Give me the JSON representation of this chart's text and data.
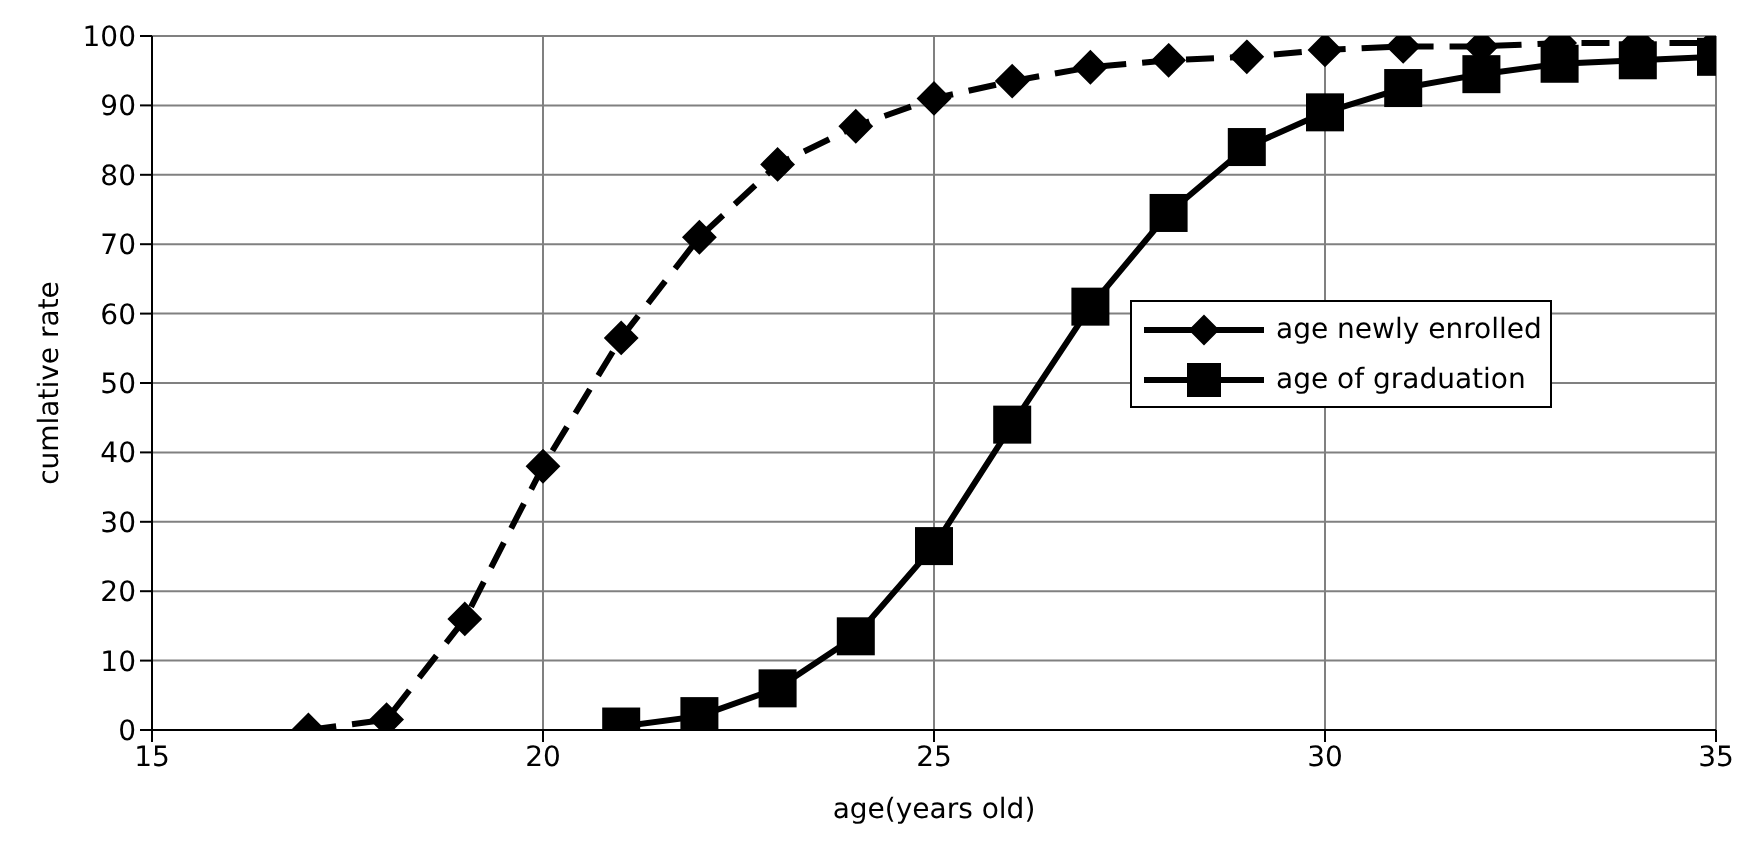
{
  "chart_data": {
    "type": "line",
    "xlabel": "age(years old)",
    "ylabel": "cumlative rate",
    "x": [
      17,
      18,
      19,
      20,
      21,
      22,
      23,
      24,
      25,
      26,
      27,
      28,
      29,
      30,
      31,
      32,
      33,
      34,
      35
    ],
    "series": [
      {
        "name": "age newly enrolled",
        "color": "#000000",
        "marker": "diamond",
        "line_style": "dashed",
        "values": [
          0,
          1.5,
          16,
          38,
          56.5,
          71,
          81.5,
          87,
          91,
          93.5,
          95.5,
          96.5,
          97,
          98,
          98.5,
          98.5,
          99,
          99,
          99
        ]
      },
      {
        "name": "age of graduation",
        "color": "#000000",
        "marker": "square",
        "line_style": "solid",
        "values": [
          null,
          null,
          null,
          null,
          0.5,
          2,
          6,
          13.5,
          26.5,
          44,
          61,
          74.5,
          84,
          89,
          92.5,
          94.5,
          96,
          96.5,
          97
        ]
      }
    ],
    "xlim": [
      15,
      35
    ],
    "xticks": [
      15,
      20,
      25,
      30,
      35
    ],
    "ylim": [
      0,
      100
    ],
    "yticks": [
      0,
      10,
      20,
      30,
      40,
      50,
      60,
      70,
      80,
      90,
      100
    ],
    "grid": true,
    "legend": "right"
  }
}
